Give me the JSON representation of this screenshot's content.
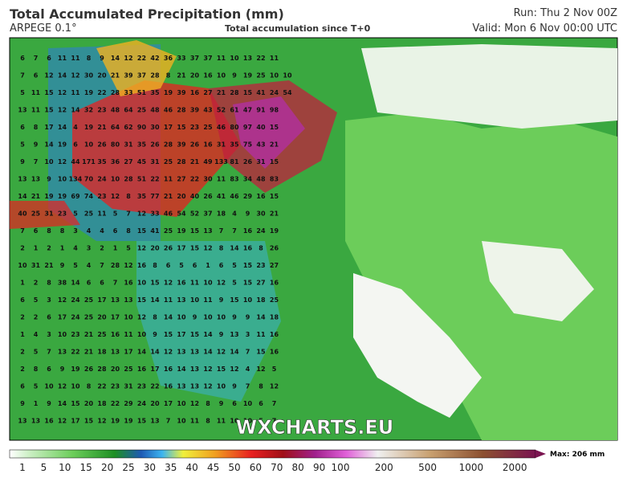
{
  "header": {
    "title": "Total Accumulated Precipitation (mm)",
    "model": "ARPEGE 0.1°",
    "subtitle": "Total accumulation since T+0",
    "run": "Run: Thu 2 Nov 00Z",
    "valid": "Valid: Mon 6 Nov 00:00 UTC"
  },
  "watermark": "WXCHARTS.EU",
  "legend": {
    "max": "Max: 206 mm",
    "ticks": [
      "1",
      "5",
      "10",
      "15",
      "20",
      "25",
      "30",
      "35",
      "40",
      "45",
      "50",
      "60",
      "70",
      "80",
      "90",
      "100",
      "200",
      "500",
      "1000",
      "2000"
    ]
  },
  "map": {
    "grid": [
      [
        "6",
        "7",
        "6",
        "11",
        "11",
        "8",
        "9",
        "14",
        "12",
        "22",
        "42",
        "36",
        "33",
        "37",
        "37",
        "11",
        "10",
        "13",
        "22",
        "11"
      ],
      [
        "7",
        "6",
        "12",
        "14",
        "12",
        "30",
        "20",
        "21",
        "39",
        "37",
        "28",
        "8",
        "21",
        "20",
        "16",
        "10",
        "9",
        "19",
        "25",
        "10",
        "10"
      ],
      [
        "5",
        "11",
        "15",
        "12",
        "11",
        "19",
        "22",
        "28",
        "33",
        "51",
        "35",
        "19",
        "39",
        "16",
        "27",
        "21",
        "28",
        "15",
        "41",
        "24",
        "54"
      ],
      [
        "13",
        "11",
        "15",
        "12",
        "14",
        "32",
        "23",
        "48",
        "64",
        "25",
        "48",
        "46",
        "28",
        "39",
        "43",
        "52",
        "61",
        "47",
        "91",
        "98"
      ],
      [
        "6",
        "8",
        "17",
        "14",
        "4",
        "19",
        "21",
        "64",
        "62",
        "90",
        "30",
        "17",
        "15",
        "23",
        "25",
        "46",
        "80",
        "97",
        "40",
        "15"
      ],
      [
        "5",
        "9",
        "14",
        "19",
        "6",
        "10",
        "26",
        "80",
        "31",
        "35",
        "26",
        "28",
        "39",
        "26",
        "16",
        "31",
        "35",
        "75",
        "43",
        "21"
      ],
      [
        "9",
        "7",
        "10",
        "12",
        "44",
        "171",
        "35",
        "36",
        "27",
        "45",
        "31",
        "25",
        "28",
        "21",
        "49",
        "133",
        "81",
        "26",
        "31",
        "15"
      ],
      [
        "13",
        "13",
        "9",
        "10",
        "134",
        "70",
        "24",
        "10",
        "28",
        "51",
        "22",
        "11",
        "27",
        "22",
        "30",
        "11",
        "83",
        "34",
        "48",
        "83"
      ],
      [
        "14",
        "21",
        "19",
        "19",
        "69",
        "74",
        "23",
        "12",
        "8",
        "35",
        "77",
        "21",
        "20",
        "40",
        "26",
        "41",
        "46",
        "29",
        "16",
        "15"
      ],
      [
        "40",
        "25",
        "31",
        "23",
        "5",
        "25",
        "11",
        "5",
        "7",
        "12",
        "33",
        "46",
        "54",
        "52",
        "37",
        "18",
        "4",
        "9",
        "30",
        "21"
      ],
      [
        "7",
        "6",
        "8",
        "8",
        "3",
        "4",
        "4",
        "6",
        "8",
        "15",
        "41",
        "25",
        "19",
        "15",
        "13",
        "7",
        "7",
        "16",
        "24",
        "19"
      ],
      [
        "2",
        "1",
        "2",
        "1",
        "4",
        "3",
        "2",
        "1",
        "5",
        "12",
        "20",
        "26",
        "17",
        "15",
        "12",
        "8",
        "14",
        "16",
        "8",
        "26"
      ],
      [
        "10",
        "31",
        "21",
        "9",
        "5",
        "4",
        "7",
        "28",
        "12",
        "16",
        "8",
        "6",
        "5",
        "6",
        "1",
        "6",
        "5",
        "15",
        "23",
        "27"
      ],
      [
        "1",
        "2",
        "8",
        "38",
        "14",
        "6",
        "6",
        "7",
        "16",
        "10",
        "15",
        "12",
        "16",
        "11",
        "10",
        "12",
        "5",
        "15",
        "27",
        "16"
      ],
      [
        "6",
        "5",
        "3",
        "12",
        "24",
        "25",
        "17",
        "13",
        "13",
        "15",
        "14",
        "11",
        "13",
        "10",
        "11",
        "9",
        "15",
        "10",
        "18",
        "25"
      ],
      [
        "2",
        "2",
        "6",
        "17",
        "24",
        "25",
        "20",
        "17",
        "10",
        "12",
        "8",
        "14",
        "10",
        "9",
        "10",
        "10",
        "9",
        "9",
        "14",
        "18"
      ],
      [
        "1",
        "4",
        "3",
        "10",
        "23",
        "21",
        "25",
        "16",
        "11",
        "10",
        "9",
        "15",
        "17",
        "15",
        "14",
        "9",
        "13",
        "3",
        "11",
        "16"
      ],
      [
        "2",
        "5",
        "7",
        "13",
        "22",
        "21",
        "18",
        "13",
        "17",
        "14",
        "14",
        "12",
        "13",
        "13",
        "14",
        "12",
        "14",
        "7",
        "15",
        "16"
      ],
      [
        "2",
        "8",
        "6",
        "9",
        "19",
        "26",
        "28",
        "20",
        "25",
        "16",
        "17",
        "16",
        "14",
        "13",
        "12",
        "15",
        "12",
        "4",
        "12",
        "5"
      ],
      [
        "6",
        "5",
        "10",
        "12",
        "10",
        "8",
        "22",
        "23",
        "31",
        "23",
        "22",
        "16",
        "13",
        "13",
        "12",
        "10",
        "9",
        "7",
        "8",
        "12"
      ],
      [
        "9",
        "1",
        "9",
        "14",
        "15",
        "20",
        "18",
        "22",
        "29",
        "24",
        "20",
        "17",
        "10",
        "12",
        "8",
        "9",
        "6",
        "10",
        "6",
        "7"
      ],
      [
        "13",
        "13",
        "16",
        "12",
        "17",
        "15",
        "12",
        "19",
        "19",
        "15",
        "13",
        "7",
        "10",
        "11",
        "8",
        "11",
        "10",
        "10",
        "5",
        "7"
      ]
    ]
  }
}
